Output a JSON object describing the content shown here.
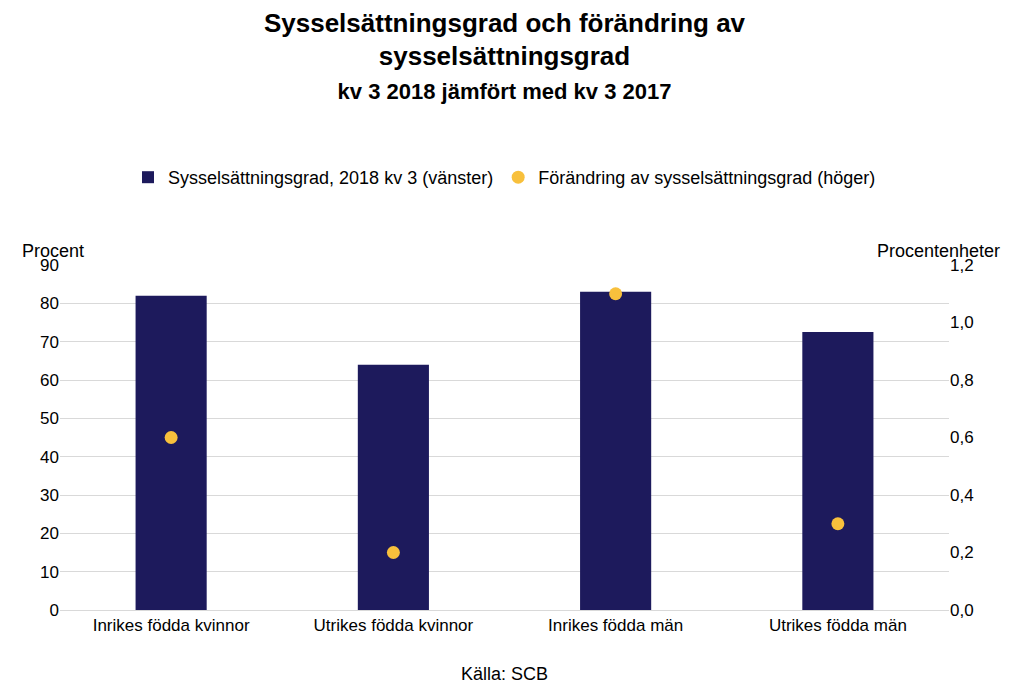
{
  "chart_data": {
    "type": "bar",
    "title": [
      "Sysselsättningsgrad och förändring av",
      "sysselsättningsgrad"
    ],
    "subtitle": "kv 3 2018 jämfört med kv 3 2017",
    "ylabel": "Procent",
    "y2label": "Procentenheter",
    "annotations": [
      "Källa: SCB"
    ],
    "categories": [
      "Inrikes födda kvinnor",
      "Utrikes födda kvinnor",
      "Inrikes födda män",
      "Utrikes födda män"
    ],
    "series": [
      {
        "name": "Sysselsättningsgrad, 2018 kv 3 (vänster)",
        "type": "bar",
        "color": "#1d1a5c",
        "values": [
          82,
          64,
          83,
          72.5
        ]
      },
      {
        "name": "Förändring av sysselsättningsgrad (höger)",
        "type": "scatter",
        "marker": "circle",
        "axis": "y2",
        "color": "#f8c03c",
        "values": [
          0.6,
          0.2,
          1.1,
          0.3
        ]
      }
    ],
    "ylim": [
      0,
      90
    ],
    "yticks": [
      0,
      10,
      20,
      30,
      40,
      50,
      60,
      70,
      80,
      90
    ],
    "y2lim": [
      0,
      1.2
    ],
    "y2ticks": [
      {
        "value": 0,
        "label": "0,0"
      },
      {
        "value": 0.2,
        "label": "0,2"
      },
      {
        "value": 0.4,
        "label": "0,4"
      },
      {
        "value": 0.6,
        "label": "0,6"
      },
      {
        "value": 0.8,
        "label": "0,8"
      },
      {
        "value": 1.0,
        "label": "1,0"
      },
      {
        "value": 1.2,
        "label": "1,2"
      }
    ],
    "grid": true,
    "legend": "top"
  }
}
